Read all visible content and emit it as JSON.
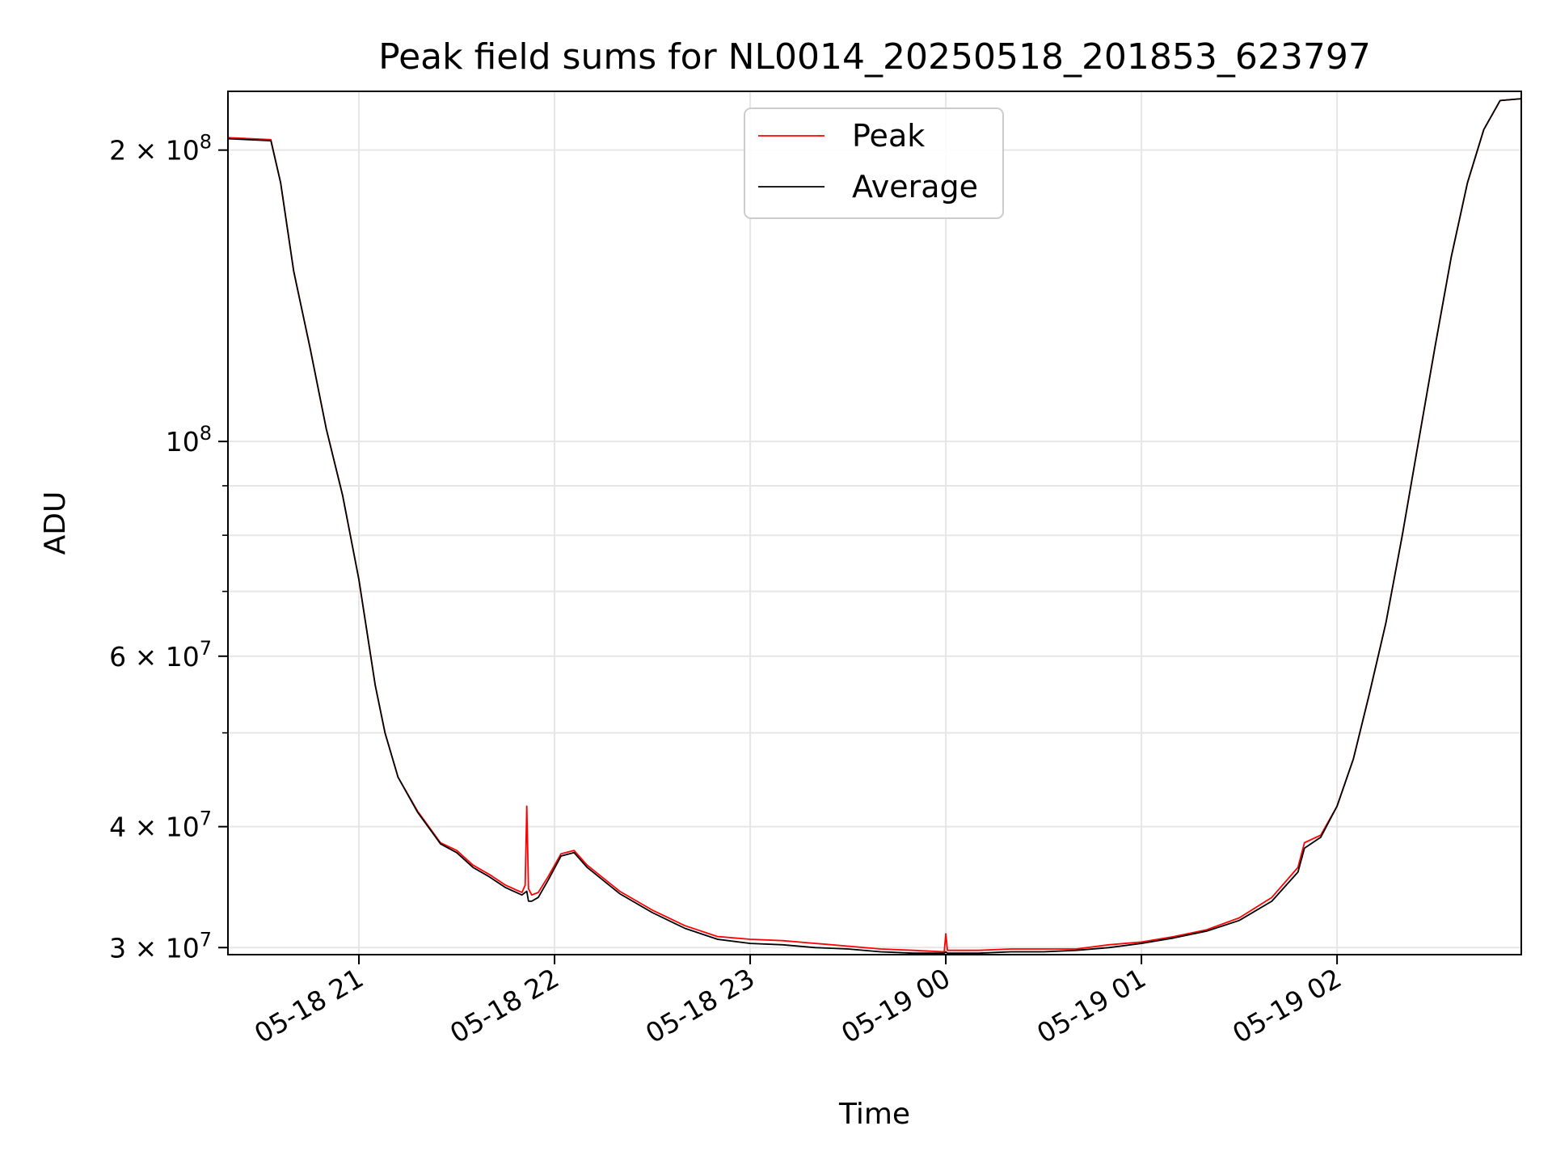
{
  "chart_data": {
    "type": "line",
    "title": "Peak field sums for NL0014_20250518_201853_623797",
    "xlabel": "Time",
    "ylabel": "ADU",
    "y_scale": "log",
    "ylim": [
      29500000,
      230000000
    ],
    "xlim": [
      "2025-05-18 20:19:50",
      "2025-05-19 02:56:30"
    ],
    "grid": true,
    "legend_placement": "upper-center",
    "x_ticks": [
      {
        "t": "2025-05-18 21:00",
        "label": "05-18 21"
      },
      {
        "t": "2025-05-18 22:00",
        "label": "05-18 22"
      },
      {
        "t": "2025-05-18 23:00",
        "label": "05-18 23"
      },
      {
        "t": "2025-05-19 00:00",
        "label": "05-19 00"
      },
      {
        "t": "2025-05-19 01:00",
        "label": "05-19 01"
      },
      {
        "t": "2025-05-19 02:00",
        "label": "05-19 02"
      }
    ],
    "y_ticks": [
      {
        "value": 30000000,
        "mantissa": "3",
        "exp": "7"
      },
      {
        "value": 40000000,
        "mantissa": "4",
        "exp": "7"
      },
      {
        "value": 60000000,
        "mantissa": "6",
        "exp": "7"
      },
      {
        "value": 100000000,
        "mantissa": "",
        "exp": "8"
      },
      {
        "value": 200000000,
        "mantissa": "2",
        "exp": "8"
      }
    ],
    "y_minor_ticks": [
      50000000,
      70000000,
      80000000,
      90000000
    ],
    "series": [
      {
        "name": "Peak",
        "color": "#ff0000",
        "x": [
          "2025-05-18 20:19:50",
          "2025-05-18 20:33:00",
          "2025-05-18 20:36:00",
          "2025-05-18 20:40:00",
          "2025-05-18 20:45:00",
          "2025-05-18 20:50:00",
          "2025-05-18 20:55:00",
          "2025-05-18 21:00:00",
          "2025-05-18 21:05:00",
          "2025-05-18 21:08:00",
          "2025-05-18 21:12:00",
          "2025-05-18 21:18:00",
          "2025-05-18 21:25:00",
          "2025-05-18 21:30:00",
          "2025-05-18 21:35:00",
          "2025-05-18 21:40:00",
          "2025-05-18 21:45:00",
          "2025-05-18 21:50:00",
          "2025-05-18 21:51:00",
          "2025-05-18 21:51:30",
          "2025-05-18 21:52:00",
          "2025-05-18 21:53:00",
          "2025-05-18 21:55:00",
          "2025-05-18 21:58:00",
          "2025-05-18 22:02:00",
          "2025-05-18 22:06:00",
          "2025-05-18 22:10:00",
          "2025-05-18 22:20:00",
          "2025-05-18 22:30:00",
          "2025-05-18 22:40:00",
          "2025-05-18 22:50:00",
          "2025-05-18 23:00:00",
          "2025-05-18 23:10:00",
          "2025-05-18 23:20:00",
          "2025-05-18 23:30:00",
          "2025-05-18 23:40:00",
          "2025-05-18 23:50:00",
          "2025-05-18 23:59:30",
          "2025-05-19 00:00:00",
          "2025-05-19 00:00:30",
          "2025-05-19 00:10:00",
          "2025-05-19 00:20:00",
          "2025-05-19 00:30:00",
          "2025-05-19 00:40:00",
          "2025-05-19 00:50:00",
          "2025-05-19 01:00:00",
          "2025-05-19 01:10:00",
          "2025-05-19 01:20:00",
          "2025-05-19 01:30:00",
          "2025-05-19 01:40:00",
          "2025-05-19 01:48:00",
          "2025-05-19 01:50:00",
          "2025-05-19 01:55:00",
          "2025-05-19 02:00:00",
          "2025-05-19 02:05:00",
          "2025-05-19 02:10:00",
          "2025-05-19 02:15:00",
          "2025-05-19 02:20:00",
          "2025-05-19 02:25:00",
          "2025-05-19 02:30:00",
          "2025-05-19 02:35:00",
          "2025-05-19 02:40:00",
          "2025-05-19 02:45:00",
          "2025-05-19 02:50:00",
          "2025-05-19 02:56:30"
        ],
        "y": [
          206000000,
          205000000,
          185000000,
          150000000,
          125000000,
          103000000,
          88000000,
          72000000,
          56000000,
          50000000,
          45000000,
          41500000,
          38500000,
          37800000,
          36500000,
          35700000,
          34800000,
          34200000,
          34800000,
          42000000,
          34500000,
          34000000,
          34200000,
          35500000,
          37500000,
          37800000,
          36500000,
          34300000,
          32800000,
          31600000,
          30800000,
          30600000,
          30500000,
          30300000,
          30100000,
          29900000,
          29800000,
          29700000,
          31000000,
          29800000,
          29800000,
          29900000,
          29900000,
          29900000,
          30200000,
          30400000,
          30800000,
          31300000,
          32200000,
          33800000,
          36300000,
          38500000,
          39200000,
          42000000,
          47000000,
          55000000,
          65000000,
          80000000,
          100000000,
          125000000,
          155000000,
          185000000,
          210000000,
          225000000,
          226000000
        ]
      },
      {
        "name": "Average",
        "color": "#000000",
        "x": [
          "2025-05-18 20:19:50",
          "2025-05-18 20:33:00",
          "2025-05-18 20:36:00",
          "2025-05-18 20:40:00",
          "2025-05-18 20:45:00",
          "2025-05-18 20:50:00",
          "2025-05-18 20:55:00",
          "2025-05-18 21:00:00",
          "2025-05-18 21:05:00",
          "2025-05-18 21:08:00",
          "2025-05-18 21:12:00",
          "2025-05-18 21:18:00",
          "2025-05-18 21:25:00",
          "2025-05-18 21:30:00",
          "2025-05-18 21:35:00",
          "2025-05-18 21:40:00",
          "2025-05-18 21:45:00",
          "2025-05-18 21:50:00",
          "2025-05-18 21:51:00",
          "2025-05-18 21:51:30",
          "2025-05-18 21:52:00",
          "2025-05-18 21:53:00",
          "2025-05-18 21:55:00",
          "2025-05-18 21:58:00",
          "2025-05-18 22:02:00",
          "2025-05-18 22:06:00",
          "2025-05-18 22:10:00",
          "2025-05-18 22:20:00",
          "2025-05-18 22:30:00",
          "2025-05-18 22:40:00",
          "2025-05-18 22:50:00",
          "2025-05-18 23:00:00",
          "2025-05-18 23:10:00",
          "2025-05-18 23:20:00",
          "2025-05-18 23:30:00",
          "2025-05-18 23:40:00",
          "2025-05-18 23:50:00",
          "2025-05-18 23:59:30",
          "2025-05-19 00:00:00",
          "2025-05-19 00:00:30",
          "2025-05-19 00:10:00",
          "2025-05-19 00:20:00",
          "2025-05-19 00:30:00",
          "2025-05-19 00:40:00",
          "2025-05-19 00:50:00",
          "2025-05-19 01:00:00",
          "2025-05-19 01:10:00",
          "2025-05-19 01:20:00",
          "2025-05-19 01:30:00",
          "2025-05-19 01:40:00",
          "2025-05-19 01:48:00",
          "2025-05-19 01:50:00",
          "2025-05-19 01:55:00",
          "2025-05-19 02:00:00",
          "2025-05-19 02:05:00",
          "2025-05-19 02:10:00",
          "2025-05-19 02:15:00",
          "2025-05-19 02:20:00",
          "2025-05-19 02:25:00",
          "2025-05-19 02:30:00",
          "2025-05-19 02:35:00",
          "2025-05-19 02:40:00",
          "2025-05-19 02:45:00",
          "2025-05-19 02:50:00",
          "2025-05-19 02:56:30"
        ],
        "y": [
          205500000,
          204500000,
          185000000,
          150000000,
          125000000,
          103000000,
          88000000,
          72000000,
          56000000,
          50000000,
          45000000,
          41400000,
          38400000,
          37600000,
          36300000,
          35500000,
          34600000,
          34000000,
          34200000,
          34300000,
          33500000,
          33500000,
          33800000,
          35200000,
          37300000,
          37600000,
          36300000,
          34100000,
          32600000,
          31400000,
          30600000,
          30300000,
          30200000,
          30000000,
          29900000,
          29700000,
          29600000,
          29600000,
          29700000,
          29600000,
          29600000,
          29700000,
          29700000,
          29800000,
          30000000,
          30300000,
          30700000,
          31200000,
          32000000,
          33500000,
          35900000,
          38000000,
          39000000,
          42000000,
          47000000,
          55000000,
          65000000,
          80000000,
          100000000,
          125000000,
          155000000,
          185000000,
          210000000,
          225000000,
          226000000
        ]
      }
    ]
  }
}
